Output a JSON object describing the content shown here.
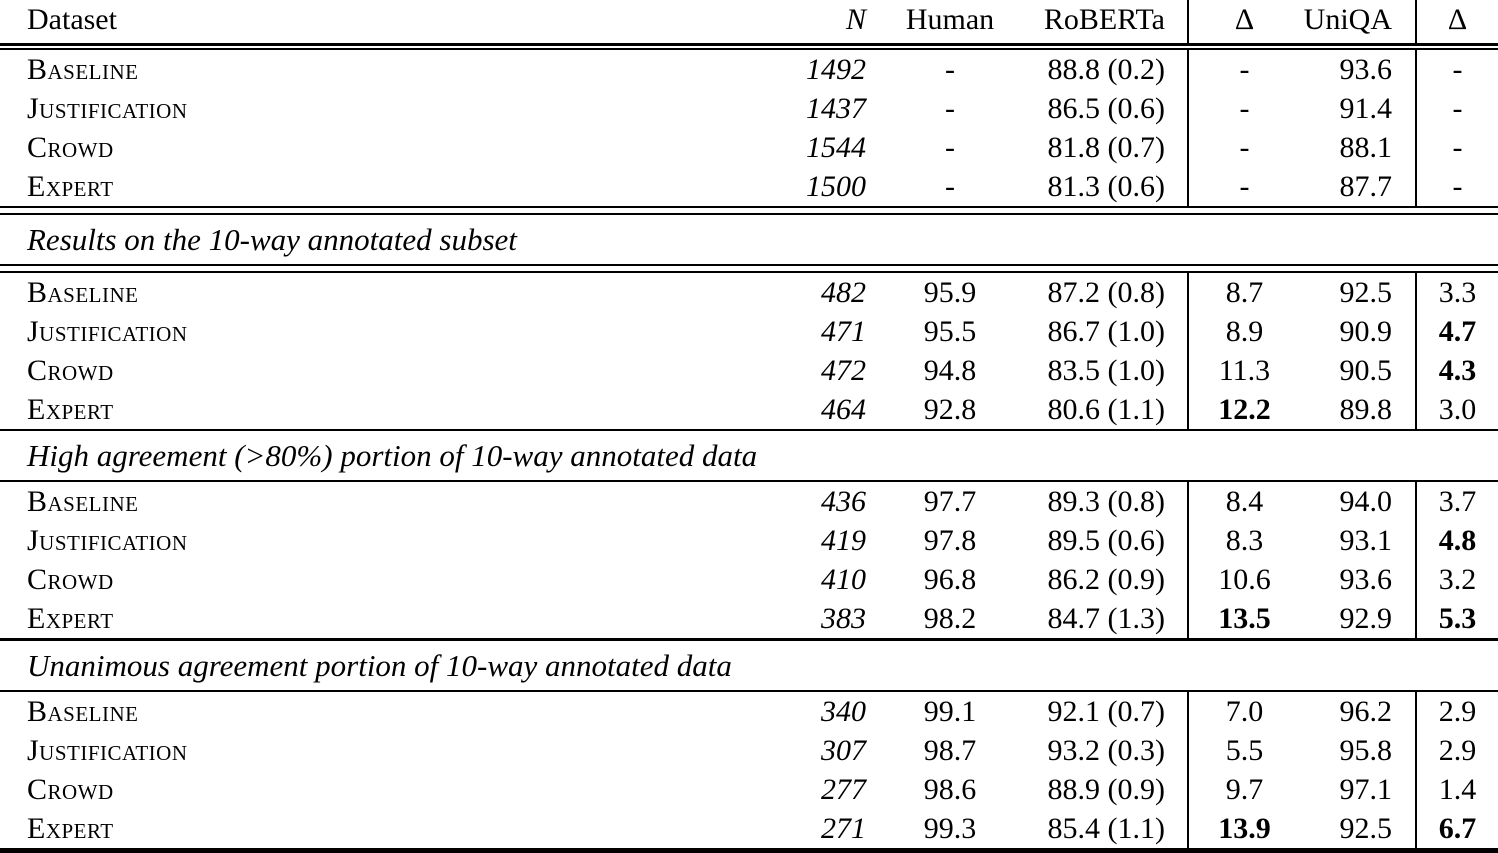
{
  "table": {
    "columns": [
      "Dataset",
      "N",
      "Human",
      "RoBERTa",
      "Δ",
      "UniQA",
      "Δ"
    ],
    "sections": [
      {
        "title": null,
        "rows": [
          {
            "cells": [
              "Baseline",
              "1492",
              "-",
              "88.8 (0.2)",
              "-",
              "93.6",
              "-"
            ],
            "bold": []
          },
          {
            "cells": [
              "Justification",
              "1437",
              "-",
              "86.5 (0.6)",
              "-",
              "91.4",
              "-"
            ],
            "bold": []
          },
          {
            "cells": [
              "Crowd",
              "1544",
              "-",
              "81.8 (0.7)",
              "-",
              "88.1",
              "-"
            ],
            "bold": []
          },
          {
            "cells": [
              "Expert",
              "1500",
              "-",
              "81.3 (0.6)",
              "-",
              "87.7",
              "-"
            ],
            "bold": []
          }
        ]
      },
      {
        "title": "Results on the 10-way annotated subset",
        "rows": [
          {
            "cells": [
              "Baseline",
              "482",
              "95.9",
              "87.2 (0.8)",
              "8.7",
              "92.5",
              "3.3"
            ],
            "bold": []
          },
          {
            "cells": [
              "Justification",
              "471",
              "95.5",
              "86.7 (1.0)",
              "8.9",
              "90.9",
              "4.7"
            ],
            "bold": [
              6
            ]
          },
          {
            "cells": [
              "Crowd",
              "472",
              "94.8",
              "83.5 (1.0)",
              "11.3",
              "90.5",
              "4.3"
            ],
            "bold": [
              6
            ]
          },
          {
            "cells": [
              "Expert",
              "464",
              "92.8",
              "80.6 (1.1)",
              "12.2",
              "89.8",
              "3.0"
            ],
            "bold": [
              4
            ]
          }
        ]
      },
      {
        "title": "High agreement (>80%) portion of 10-way annotated data",
        "rows": [
          {
            "cells": [
              "Baseline",
              "436",
              "97.7",
              "89.3 (0.8)",
              "8.4",
              "94.0",
              "3.7"
            ],
            "bold": []
          },
          {
            "cells": [
              "Justification",
              "419",
              "97.8",
              "89.5 (0.6)",
              "8.3",
              "93.1",
              "4.8"
            ],
            "bold": [
              6
            ]
          },
          {
            "cells": [
              "Crowd",
              "410",
              "96.8",
              "86.2 (0.9)",
              "10.6",
              "93.6",
              "3.2"
            ],
            "bold": []
          },
          {
            "cells": [
              "Expert",
              "383",
              "98.2",
              "84.7 (1.3)",
              "13.5",
              "92.9",
              "5.3"
            ],
            "bold": [
              4,
              6
            ]
          }
        ]
      },
      {
        "title": "Unanimous agreement portion of 10-way annotated data",
        "rows": [
          {
            "cells": [
              "Baseline",
              "340",
              "99.1",
              "92.1 (0.7)",
              "7.0",
              "96.2",
              "2.9"
            ],
            "bold": []
          },
          {
            "cells": [
              "Justification",
              "307",
              "98.7",
              "93.2 (0.3)",
              "5.5",
              "95.8",
              "2.9"
            ],
            "bold": []
          },
          {
            "cells": [
              "Crowd",
              "277",
              "98.6",
              "88.9 (0.9)",
              "9.7",
              "97.1",
              "1.4"
            ],
            "bold": []
          },
          {
            "cells": [
              "Expert",
              "271",
              "99.3",
              "85.4 (1.1)",
              "13.9",
              "92.5",
              "6.7"
            ],
            "bold": [
              4,
              6
            ]
          }
        ]
      }
    ],
    "colors": {
      "text": "#000000",
      "background": "#ffffff",
      "rule": "#000000"
    }
  }
}
